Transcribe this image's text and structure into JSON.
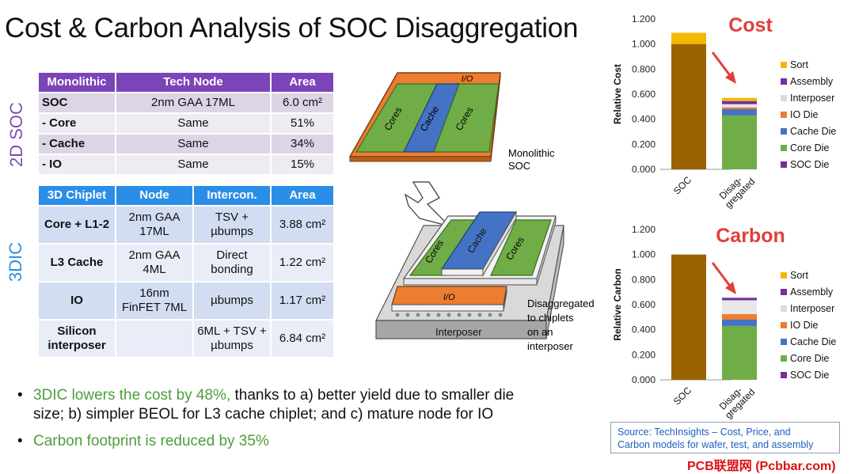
{
  "title": "Cost & Carbon Analysis of SOC Disaggregation",
  "side_labels": {
    "soc2d": "2D SOC",
    "dic3": "3DIC"
  },
  "mono_table": {
    "headers": [
      "Monolithic",
      "Tech Node",
      "Area"
    ],
    "rows": [
      {
        "name": "SOC",
        "node": "2nm GAA 17ML",
        "area": "6.0 cm²"
      },
      {
        "name": "- Core",
        "node": "Same",
        "area": "51%"
      },
      {
        "name": "- Cache",
        "node": "Same",
        "area": "34%"
      },
      {
        "name": "- IO",
        "node": "Same",
        "area": "15%"
      }
    ]
  },
  "chip_table": {
    "headers": [
      "3D Chiplet",
      "Node",
      "Intercon.",
      "Area"
    ],
    "rows": [
      {
        "name": "Core + L1-2",
        "node": "2nm GAA 17ML",
        "inter": "TSV + µbumps",
        "area": "3.88 cm²"
      },
      {
        "name": "L3 Cache",
        "node": "2nm GAA 4ML",
        "inter": "Direct bonding",
        "area": "1.22 cm²"
      },
      {
        "name": "IO",
        "node": "16nm FinFET 7ML",
        "inter": "µbumps",
        "area": "1.17 cm²"
      },
      {
        "name": "Silicon interposer",
        "node": "",
        "inter": "6ML + TSV + µbumps",
        "area": "6.84 cm²"
      }
    ]
  },
  "diagram": {
    "io_label": "I/O",
    "cores_label": "Cores",
    "cache_label": "Cache",
    "interposer_label": "Interposer",
    "monolithic_caption_1": "Monolithic",
    "monolithic_caption_2": "SOC",
    "disagg_caption_1": "Disaggregated",
    "disagg_caption_2": "to chiplets",
    "disagg_caption_3": "on an",
    "disagg_caption_4": "interposer"
  },
  "bullets": {
    "b1_green": "3DIC lowers the cost by 48%,",
    "b1_rest": " thanks to a) better yield due to smaller die",
    "b1_line2": "size; b) simpler BEOL for L3 cache chiplet; and c) mature node for IO",
    "b2": "Carbon footprint is reduced by 35%"
  },
  "source": {
    "line1": "Source: TechInsights – Cost, Price, and",
    "line2": "Carbon models for wafer, test, and assembly"
  },
  "watermark": "PCB联盟网 (Pcbbar.com)",
  "colors": {
    "Sort": "#f5b800",
    "Assembly": "#7030a0",
    "Interposer": "#e8e8e8",
    "IO Die": "#ed7d31",
    "Cache Die": "#4472c4",
    "Core Die": "#70ad47",
    "SOC Die": "#7030a0",
    "SOC": "#996300",
    "title_red": "#e0403a"
  },
  "chart_data": [
    {
      "type": "bar",
      "title": "Cost",
      "ylabel": "Relative Cost",
      "categories": [
        "SOC",
        "Disag-gregated"
      ],
      "ylim": [
        0,
        1.2
      ],
      "yticks": [
        "0.000",
        "0.200",
        "0.400",
        "0.600",
        "0.800",
        "1.000",
        "1.200"
      ],
      "legend": [
        "Sort",
        "Assembly",
        "Interposer",
        "IO Die",
        "Cache Die",
        "Core Die",
        "SOC Die"
      ],
      "legend_position": "right",
      "series": [
        {
          "name": "SOC Die",
          "values": [
            1.0,
            0.0
          ]
        },
        {
          "name": "Core Die",
          "values": [
            0.0,
            0.43
          ]
        },
        {
          "name": "Cache Die",
          "values": [
            0.0,
            0.05
          ]
        },
        {
          "name": "IO Die",
          "values": [
            0.0,
            0.015
          ]
        },
        {
          "name": "Interposer",
          "values": [
            0.0,
            0.025
          ]
        },
        {
          "name": "Assembly",
          "values": [
            0.0,
            0.025
          ]
        },
        {
          "name": "Sort",
          "values": [
            0.09,
            0.025
          ]
        }
      ]
    },
    {
      "type": "bar",
      "title": "Carbon",
      "ylabel": "Relative Carbon",
      "categories": [
        "SOC",
        "Disag-gregated"
      ],
      "ylim": [
        0,
        1.2
      ],
      "yticks": [
        "0.000",
        "0.200",
        "0.400",
        "0.600",
        "0.800",
        "1.000",
        "1.200"
      ],
      "legend": [
        "Sort",
        "Assembly",
        "Interposer",
        "IO Die",
        "Cache Die",
        "Core Die",
        "SOC Die"
      ],
      "legend_position": "right",
      "series": [
        {
          "name": "SOC Die",
          "values": [
            1.0,
            0.0
          ]
        },
        {
          "name": "Core Die",
          "values": [
            0.0,
            0.43
          ]
        },
        {
          "name": "Cache Die",
          "values": [
            0.0,
            0.05
          ]
        },
        {
          "name": "IO Die",
          "values": [
            0.0,
            0.045
          ]
        },
        {
          "name": "Interposer",
          "values": [
            0.0,
            0.11
          ]
        },
        {
          "name": "Assembly",
          "values": [
            0.0,
            0.02
          ]
        },
        {
          "name": "Sort",
          "values": [
            0.0,
            0.0
          ]
        }
      ]
    }
  ]
}
